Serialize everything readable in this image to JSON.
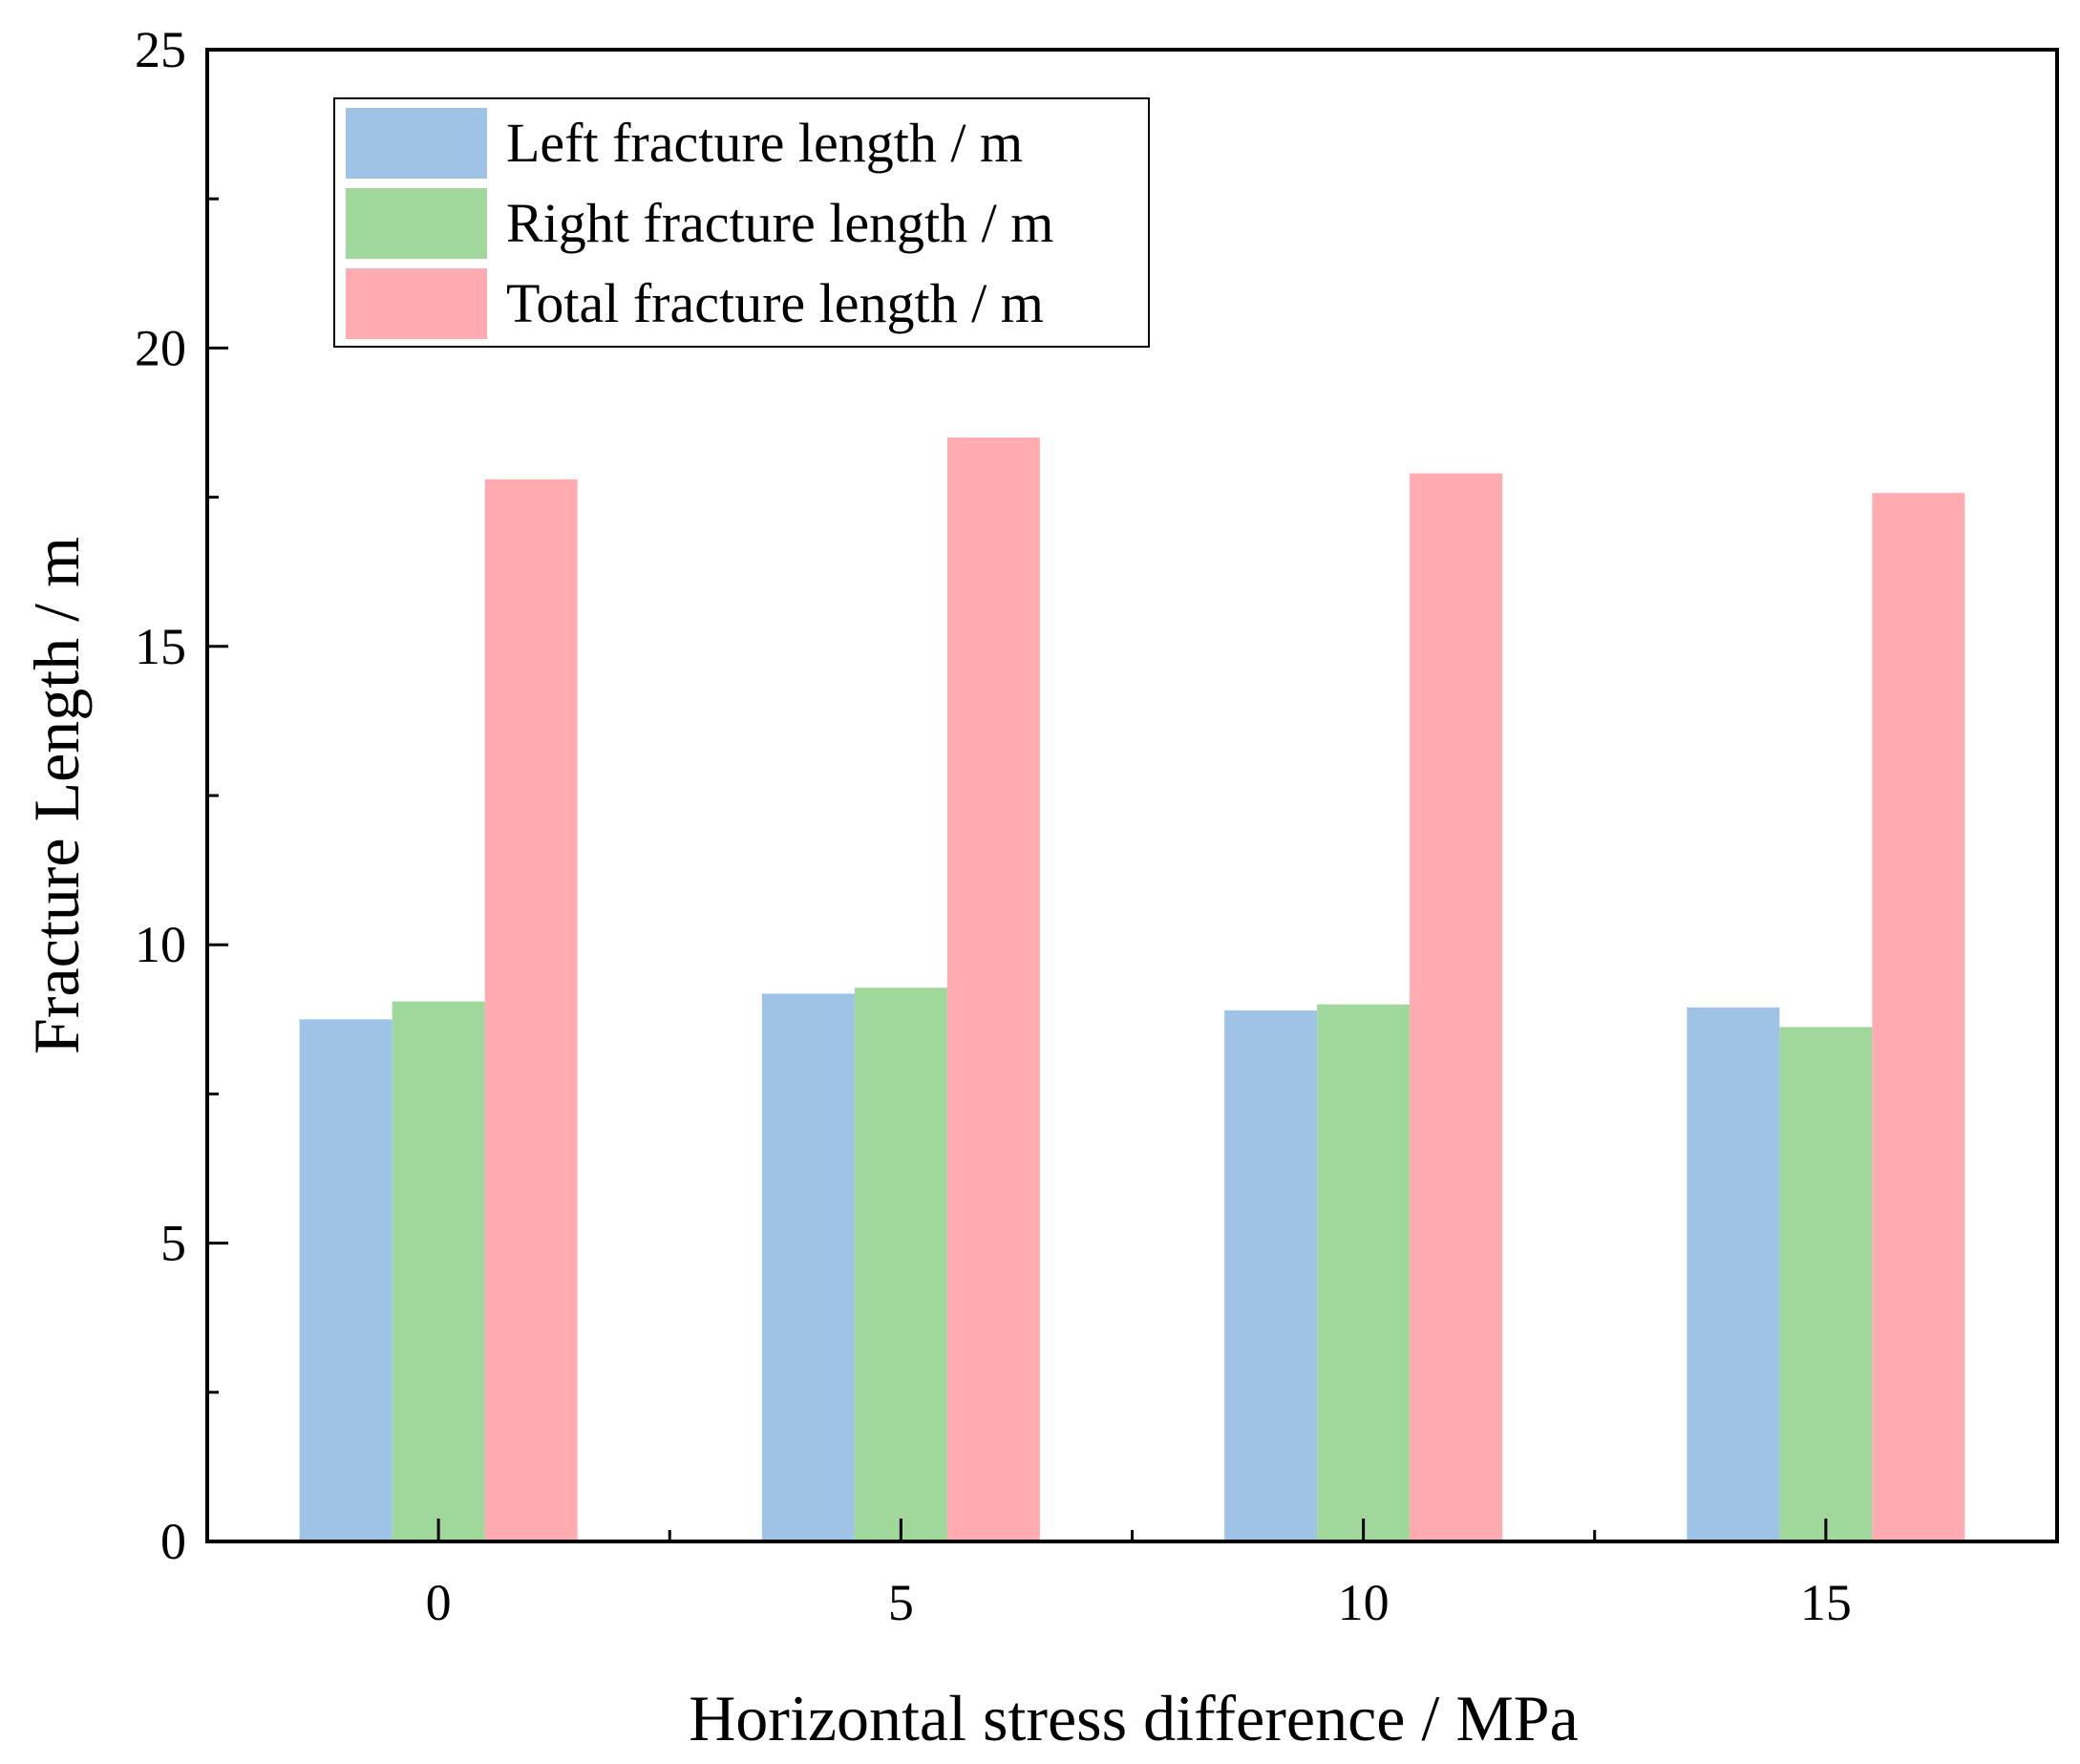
{
  "chart_data": {
    "type": "bar",
    "title": "",
    "xlabel": "Horizontal stress difference / MPa",
    "ylabel": "Fracture Length / m",
    "categories": [
      "0",
      "5",
      "10",
      "15"
    ],
    "ylim": [
      0,
      25
    ],
    "yticks": [
      0,
      5,
      10,
      15,
      20,
      25
    ],
    "yticks_minor": [
      2.5,
      7.5,
      12.5,
      17.5,
      22.5
    ],
    "grid": false,
    "legend_position": "top-left",
    "series": [
      {
        "name": "Left fracture length / m",
        "color": "#9fc3e7",
        "values": [
          8.75,
          9.18,
          8.9,
          8.95
        ]
      },
      {
        "name": "Right fracture length / m",
        "color": "#a0d89c",
        "values": [
          9.05,
          9.28,
          9.0,
          8.62
        ]
      },
      {
        "name": "Total fracture length / m",
        "color": "#ffabaf",
        "values": [
          17.8,
          18.5,
          17.9,
          17.57
        ]
      }
    ]
  }
}
